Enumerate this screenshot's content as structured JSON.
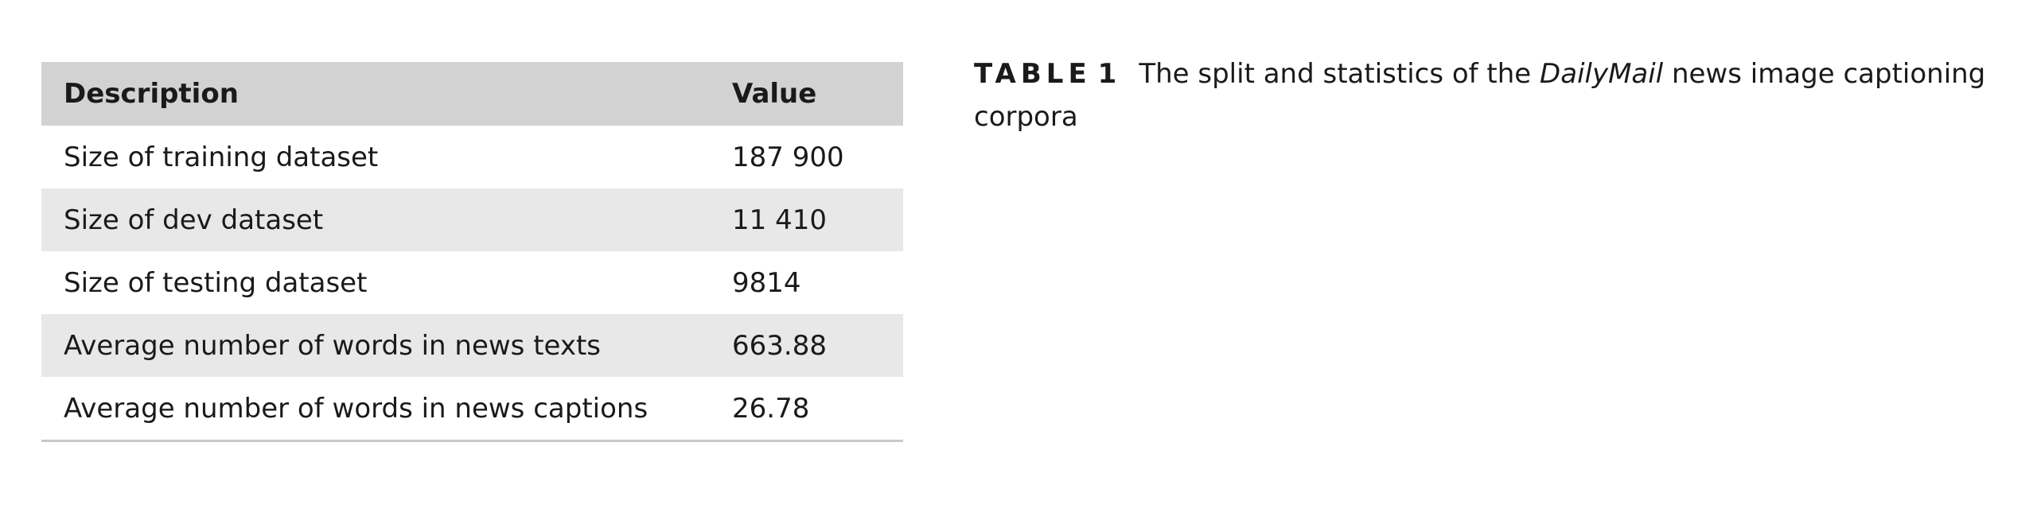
{
  "table": {
    "headers": {
      "description": "Description",
      "value": "Value"
    },
    "rows": [
      {
        "description": "Size of training dataset",
        "value": "187 900"
      },
      {
        "description": "Size of dev dataset",
        "value": "11 410"
      },
      {
        "description": "Size of testing dataset",
        "value": "9814"
      },
      {
        "description": "Average number of words in news texts",
        "value": "663.88"
      },
      {
        "description": "Average number of words in news captions",
        "value": "26.78"
      }
    ]
  },
  "caption": {
    "label": "TABLE",
    "number": "1",
    "text_before": "The split and statistics of the ",
    "text_italic": "DailyMail",
    "text_after": " news image captioning corpora"
  }
}
